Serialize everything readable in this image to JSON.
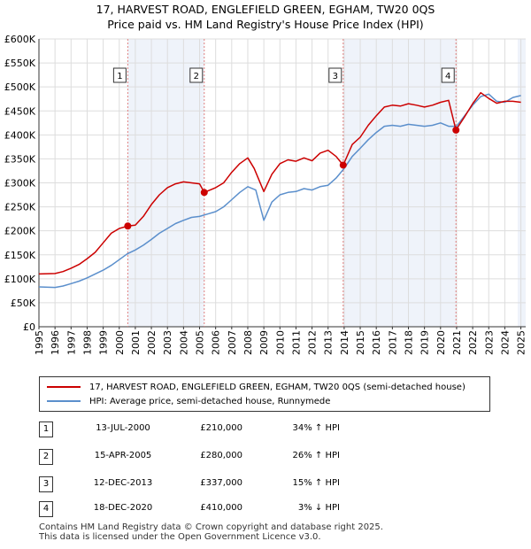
{
  "title_line1": "17, HARVEST ROAD, ENGLEFIELD GREEN, EGHAM, TW20 0QS",
  "title_line2": "Price paid vs. HM Land Registry's House Price Index (HPI)",
  "colors": {
    "property": "#cc0000",
    "hpi": "#5b8fcc",
    "marker_line": "#e08080",
    "grid": "#dddddd",
    "band": "#e8eef8"
  },
  "legend": {
    "property_label": "17, HARVEST ROAD, ENGLEFIELD GREEN, EGHAM, TW20 0QS (semi-detached house)",
    "hpi_label": "HPI: Average price, semi-detached house, Runnymede"
  },
  "sales": [
    {
      "num": "1",
      "date": "13-JUL-2000",
      "price": "£210,000",
      "hpi": "34% ↑ HPI"
    },
    {
      "num": "2",
      "date": "15-APR-2005",
      "price": "£280,000",
      "hpi": "26% ↑ HPI"
    },
    {
      "num": "3",
      "date": "12-DEC-2013",
      "price": "£337,000",
      "hpi": "15% ↑ HPI"
    },
    {
      "num": "4",
      "date": "18-DEC-2020",
      "price": "£410,000",
      "hpi": "3% ↓ HPI"
    }
  ],
  "footer_line1": "Contains HM Land Registry data © Crown copyright and database right 2025.",
  "footer_line2": "This data is licensed under the Open Government Licence v3.0.",
  "chart_data": {
    "type": "line",
    "title": "17, HARVEST ROAD, ENGLEFIELD GREEN, EGHAM, TW20 0QS — Price paid vs. HM Land Registry's House Price Index (HPI)",
    "xlabel": "",
    "ylabel": "",
    "xlim": [
      1995,
      2025.3
    ],
    "ylim": [
      0,
      600000
    ],
    "x_ticks": [
      1995,
      1996,
      1997,
      1998,
      1999,
      2000,
      2001,
      2002,
      2003,
      2004,
      2005,
      2006,
      2007,
      2008,
      2009,
      2010,
      2011,
      2012,
      2013,
      2014,
      2015,
      2016,
      2017,
      2018,
      2019,
      2020,
      2021,
      2022,
      2023,
      2024,
      2025
    ],
    "y_ticks": [
      0,
      50000,
      100000,
      150000,
      200000,
      250000,
      300000,
      350000,
      400000,
      450000,
      500000,
      550000,
      600000
    ],
    "y_tick_labels": [
      "£0",
      "£50K",
      "£100K",
      "£150K",
      "£200K",
      "£250K",
      "£300K",
      "£350K",
      "£400K",
      "£450K",
      "£500K",
      "£550K",
      "£600K"
    ],
    "grid": true,
    "series": [
      {
        "name": "17, HARVEST ROAD, ENGLEFIELD GREEN, EGHAM, TW20 0QS (semi-detached house)",
        "x": [
          1995,
          1996,
          1996.5,
          1997,
          1997.5,
          1998,
          1998.5,
          1999,
          1999.5,
          2000,
          2000.53,
          2001,
          2001.5,
          2002,
          2002.5,
          2003,
          2003.5,
          2004,
          2004.5,
          2005,
          2005.29,
          2006,
          2006.5,
          2007,
          2007.5,
          2008,
          2008.4,
          2009,
          2009.5,
          2010,
          2010.5,
          2011,
          2011.5,
          2012,
          2012.5,
          2013,
          2013.5,
          2013.94,
          2014.5,
          2015,
          2015.5,
          2016,
          2016.5,
          2017,
          2017.5,
          2018,
          2018.5,
          2019,
          2019.5,
          2020,
          2020.5,
          2020.96,
          2021.5,
          2022,
          2022.5,
          2023,
          2023.5,
          2024,
          2024.5,
          2025
        ],
        "values": [
          110000,
          111000,
          115000,
          122000,
          130000,
          142000,
          155000,
          175000,
          195000,
          205000,
          210000,
          212000,
          230000,
          255000,
          275000,
          290000,
          298000,
          302000,
          300000,
          298000,
          280000,
          290000,
          300000,
          322000,
          340000,
          352000,
          330000,
          282000,
          318000,
          340000,
          348000,
          345000,
          352000,
          346000,
          362000,
          368000,
          355000,
          337000,
          380000,
          395000,
          420000,
          440000,
          458000,
          462000,
          460000,
          465000,
          462000,
          458000,
          462000,
          468000,
          472000,
          410000,
          438000,
          465000,
          488000,
          476000,
          466000,
          470000,
          470000,
          468000
        ]
      },
      {
        "name": "HPI: Average price, semi-detached house, Runnymede",
        "x": [
          1995,
          1996,
          1996.5,
          1997,
          1997.5,
          1998,
          1998.5,
          1999,
          1999.5,
          2000,
          2000.5,
          2001,
          2001.5,
          2002,
          2002.5,
          2003,
          2003.5,
          2004,
          2004.5,
          2005,
          2005.5,
          2006,
          2006.5,
          2007,
          2007.5,
          2008,
          2008.5,
          2009,
          2009.5,
          2010,
          2010.5,
          2011,
          2011.5,
          2012,
          2012.5,
          2013,
          2013.5,
          2014,
          2014.5,
          2015,
          2015.5,
          2016,
          2016.5,
          2017,
          2017.5,
          2018,
          2018.5,
          2019,
          2019.5,
          2020,
          2020.5,
          2021,
          2021.5,
          2022,
          2022.5,
          2023,
          2023.5,
          2024,
          2024.5,
          2025
        ],
        "values": [
          83000,
          82000,
          85000,
          90000,
          95000,
          102000,
          110000,
          118000,
          128000,
          140000,
          152000,
          160000,
          170000,
          182000,
          195000,
          205000,
          215000,
          222000,
          228000,
          230000,
          235000,
          240000,
          250000,
          265000,
          280000,
          292000,
          285000,
          222000,
          260000,
          275000,
          280000,
          282000,
          288000,
          285000,
          292000,
          295000,
          310000,
          330000,
          355000,
          372000,
          390000,
          405000,
          418000,
          420000,
          418000,
          422000,
          420000,
          418000,
          420000,
          425000,
          418000,
          418000,
          440000,
          462000,
          480000,
          485000,
          470000,
          468000,
          478000,
          482000
        ]
      }
    ],
    "sale_markers": [
      {
        "label": "1",
        "x": 2000.53,
        "value": 210000
      },
      {
        "label": "2",
        "x": 2005.29,
        "value": 280000
      },
      {
        "label": "3",
        "x": 2013.94,
        "value": 337000
      },
      {
        "label": "4",
        "x": 2020.96,
        "value": 410000
      }
    ],
    "shaded_ranges": [
      [
        2000.53,
        2005.29
      ],
      [
        2013.94,
        2020.96
      ],
      [
        2024.8,
        2025.3
      ]
    ]
  }
}
